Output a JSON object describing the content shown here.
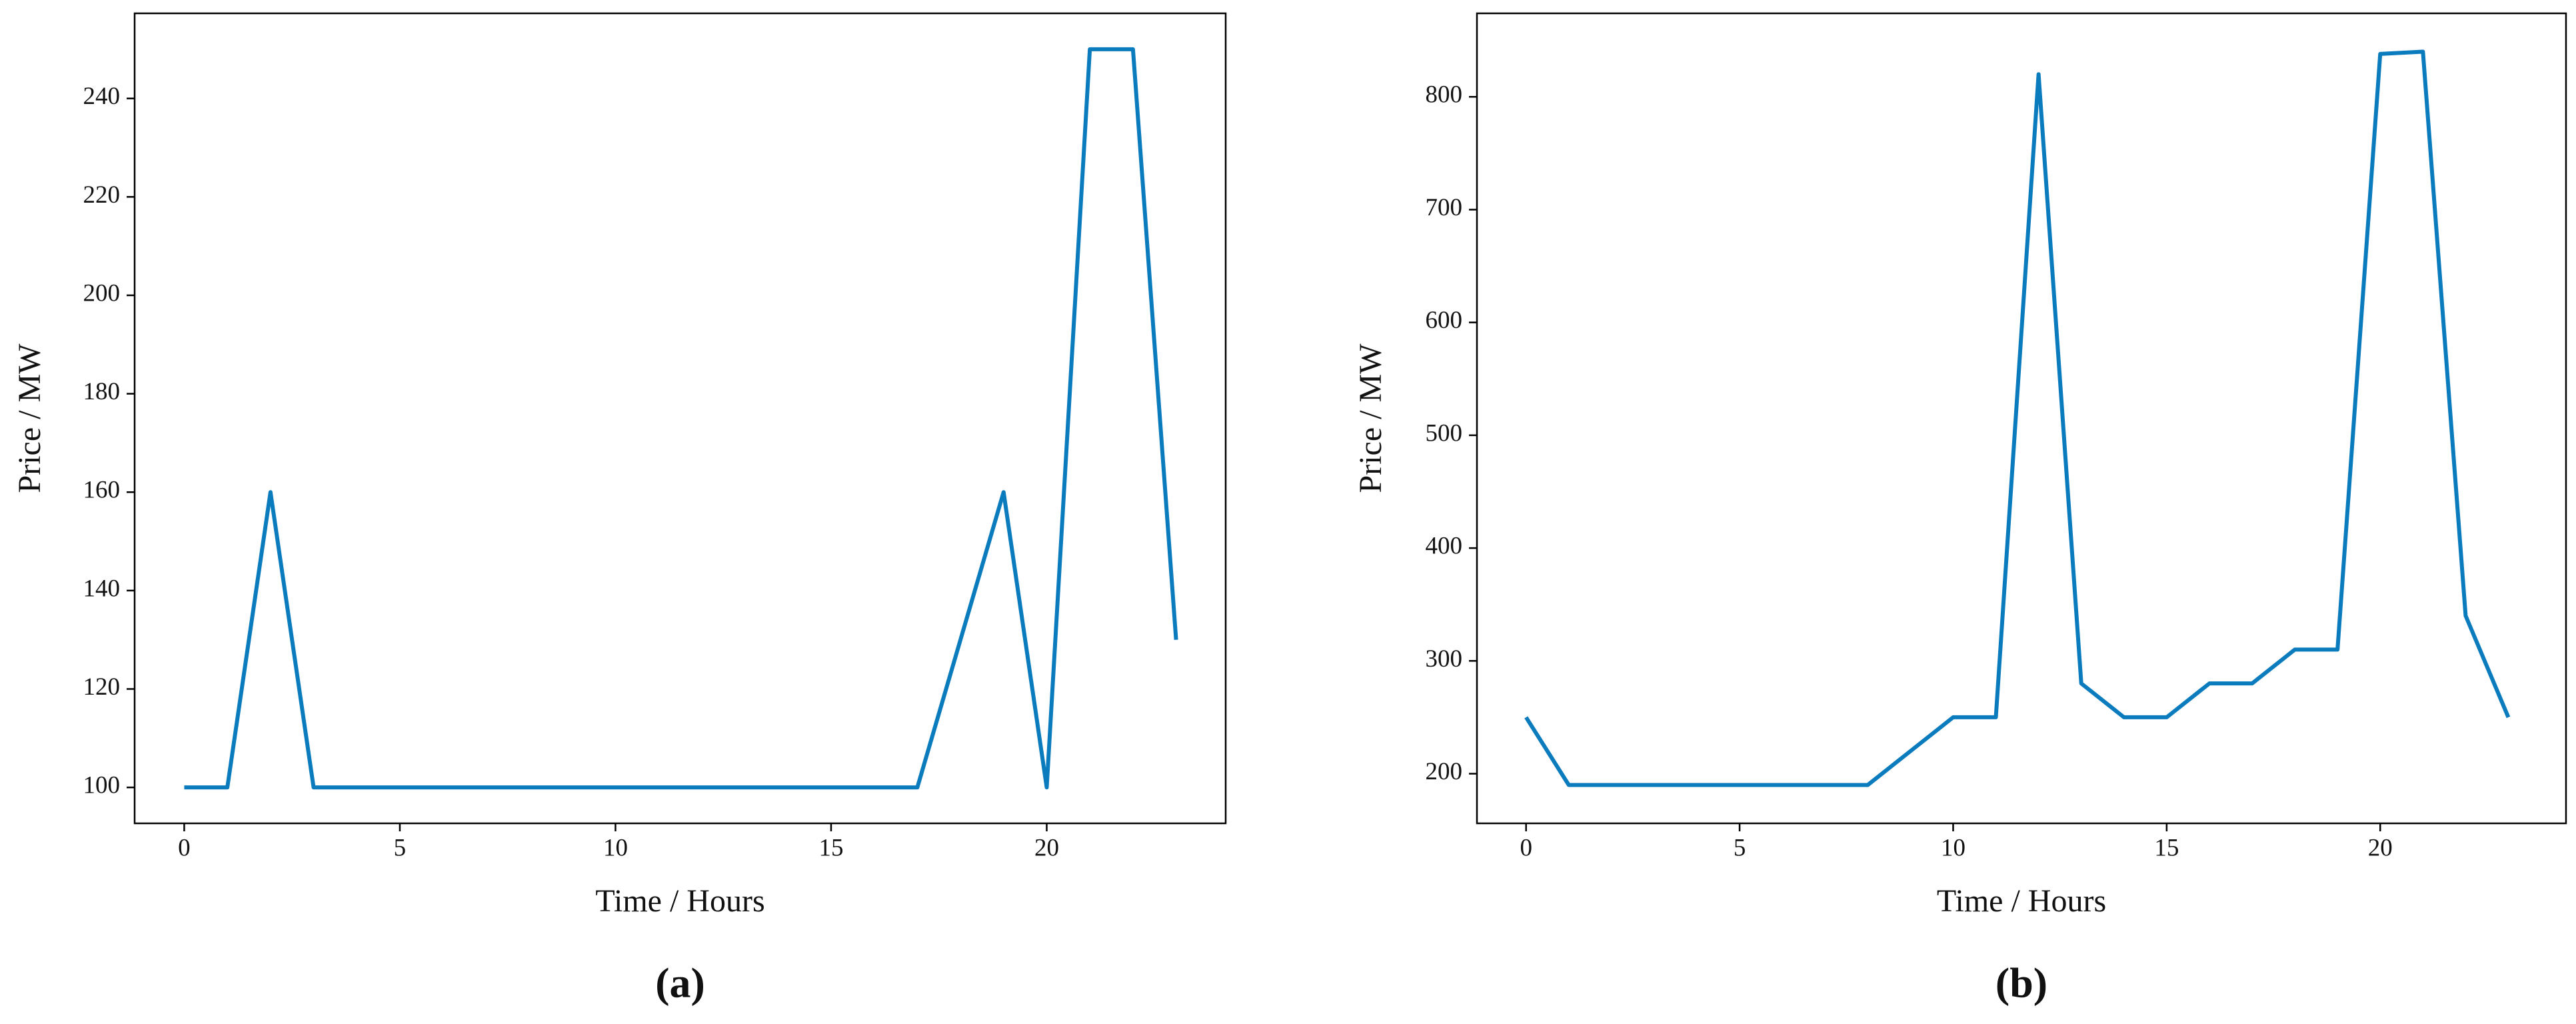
{
  "chart_data": [
    {
      "type": "line",
      "label": "(a)",
      "x_label": "Time / Hours",
      "y_label": "Price / MW",
      "color": "#0a7bbd",
      "x": [
        0,
        1,
        2,
        3,
        4,
        5,
        6,
        7,
        8,
        9,
        10,
        11,
        12,
        13,
        14,
        15,
        16,
        17,
        18,
        19,
        20,
        21,
        22,
        23
      ],
      "values": [
        100,
        100,
        160,
        100,
        100,
        100,
        100,
        100,
        100,
        100,
        100,
        100,
        100,
        100,
        100,
        100,
        100,
        100,
        130,
        160,
        100,
        250,
        250,
        130
      ],
      "xlim": [
        -1.15,
        24.15
      ],
      "ylim": [
        92.7,
        257.3
      ],
      "xticks": [
        0,
        5,
        10,
        15,
        20
      ],
      "yticks": [
        100,
        120,
        140,
        160,
        180,
        200,
        220,
        240
      ]
    },
    {
      "type": "line",
      "label": "(b)",
      "x_label": "Time / Hours",
      "y_label": "Price / MW",
      "color": "#0a7bbd",
      "x": [
        0,
        1,
        2,
        3,
        4,
        5,
        6,
        7,
        8,
        9,
        10,
        11,
        12,
        13,
        14,
        15,
        16,
        17,
        18,
        19,
        20,
        21,
        22,
        23
      ],
      "values": [
        250,
        190,
        190,
        190,
        190,
        190,
        190,
        190,
        190,
        220,
        250,
        250,
        820,
        280,
        250,
        250,
        280,
        280,
        310,
        310,
        838,
        840,
        340,
        250
      ],
      "xlim": [
        -1.15,
        24.35
      ],
      "ylim": [
        156,
        874
      ],
      "xticks": [
        0,
        5,
        10,
        15,
        20
      ],
      "yticks": [
        200,
        300,
        400,
        500,
        600,
        700,
        800
      ]
    }
  ]
}
